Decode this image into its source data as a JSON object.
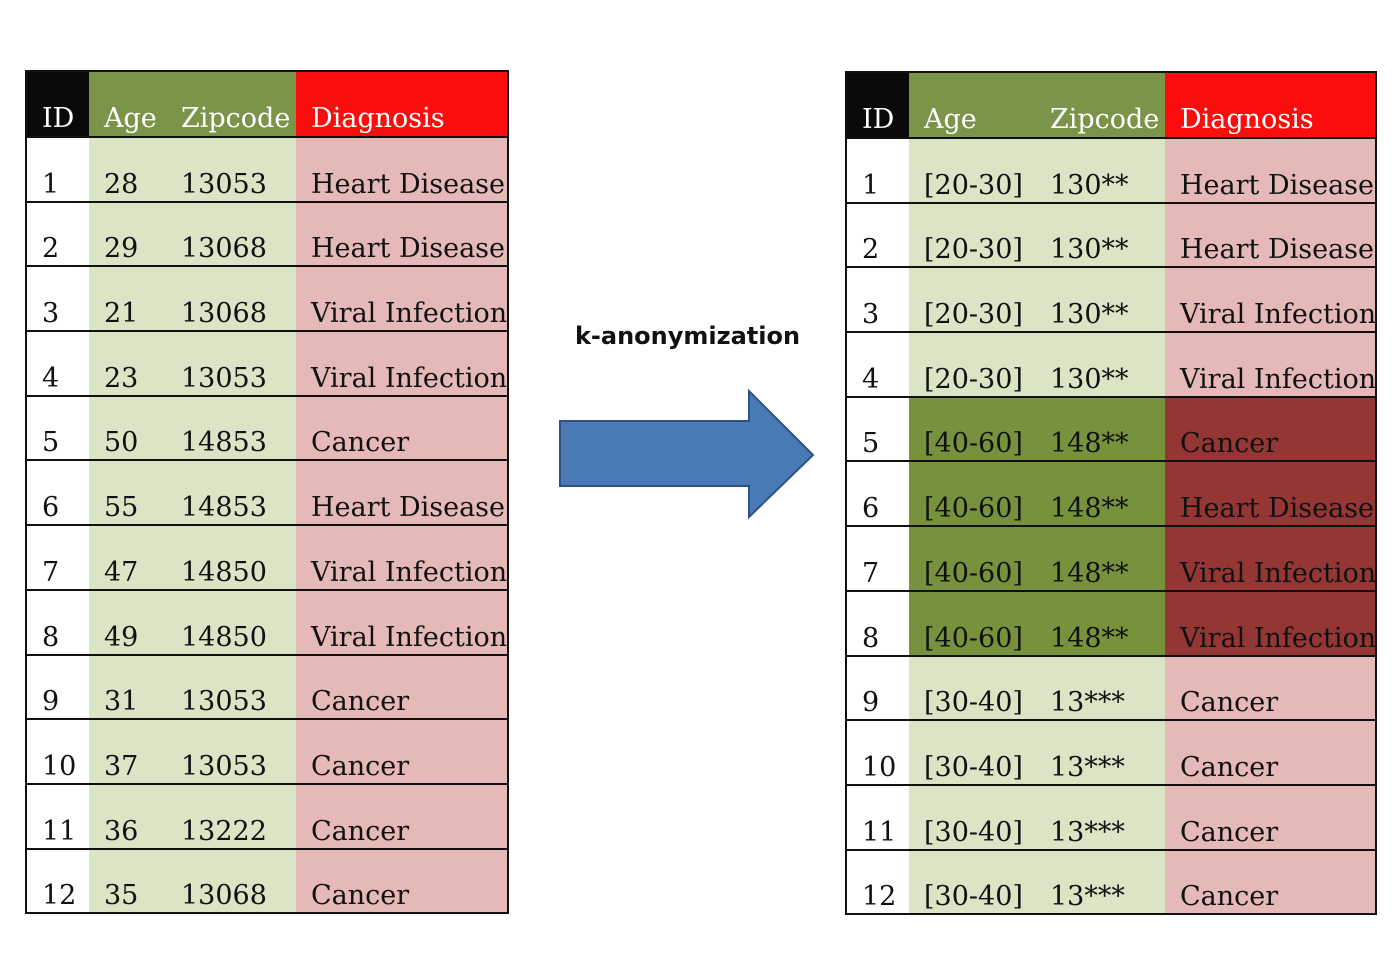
{
  "original_table": {
    "headers": [
      "ID",
      "Age",
      "Zipcode",
      "Diagnosis"
    ],
    "rows": [
      [
        "1",
        "28",
        "13053",
        "Heart Disease"
      ],
      [
        "2",
        "29",
        "13068",
        "Heart Disease"
      ],
      [
        "3",
        "21",
        "13068",
        "Viral Infection"
      ],
      [
        "4",
        "23",
        "13053",
        "Viral Infection"
      ],
      [
        "5",
        "50",
        "14853",
        "Cancer"
      ],
      [
        "6",
        "55",
        "14853",
        "Heart Disease"
      ],
      [
        "7",
        "47",
        "14850",
        "Viral Infection"
      ],
      [
        "8",
        "49",
        "14850",
        "Viral Infection"
      ],
      [
        "9",
        "31",
        "13053",
        "Cancer"
      ],
      [
        "10",
        "37",
        "13053",
        "Cancer"
      ],
      [
        "11",
        "36",
        "13222",
        "Cancer"
      ],
      [
        "12",
        "35",
        "13068",
        "Cancer"
      ]
    ]
  },
  "transformation": {
    "label": "k-anonymization",
    "arrow_color": "#4a7ab5"
  },
  "anonymized_table": {
    "headers": [
      "ID",
      "Age",
      "Zipcode",
      "Diagnosis"
    ],
    "rows": [
      [
        "1",
        "[20-30]",
        "130**",
        "Heart Disease"
      ],
      [
        "2",
        "[20-30]",
        "130**",
        "Heart Disease"
      ],
      [
        "3",
        "[20-30]",
        "130**",
        "Viral Infection"
      ],
      [
        "4",
        "[20-30]",
        "130**",
        "Viral Infection"
      ],
      [
        "5",
        "[40-60]",
        "148**",
        "Cancer"
      ],
      [
        "6",
        "[40-60]",
        "148**",
        "Heart Disease"
      ],
      [
        "7",
        "[40-60]",
        "148**",
        "Viral Infection"
      ],
      [
        "8",
        "[40-60]",
        "148**",
        "Viral Infection"
      ],
      [
        "9",
        "[30-40]",
        "13***",
        "Cancer"
      ],
      [
        "10",
        "[30-40]",
        "13***",
        "Cancer"
      ],
      [
        "11",
        "[30-40]",
        "13***",
        "Cancer"
      ],
      [
        "12",
        "[30-40]",
        "13***",
        "Cancer"
      ]
    ],
    "highlighted_rows": [
      5,
      6,
      7,
      8
    ]
  },
  "colors": {
    "header_id": "#0a0a0a",
    "header_qi": "#7a9449",
    "header_diagnosis": "#fb0d0d",
    "cell_qi": "#d9e5c4",
    "cell_diagnosis": "#e5b9b8",
    "highlight_qi": "#76923c",
    "highlight_diagnosis": "#943634"
  }
}
